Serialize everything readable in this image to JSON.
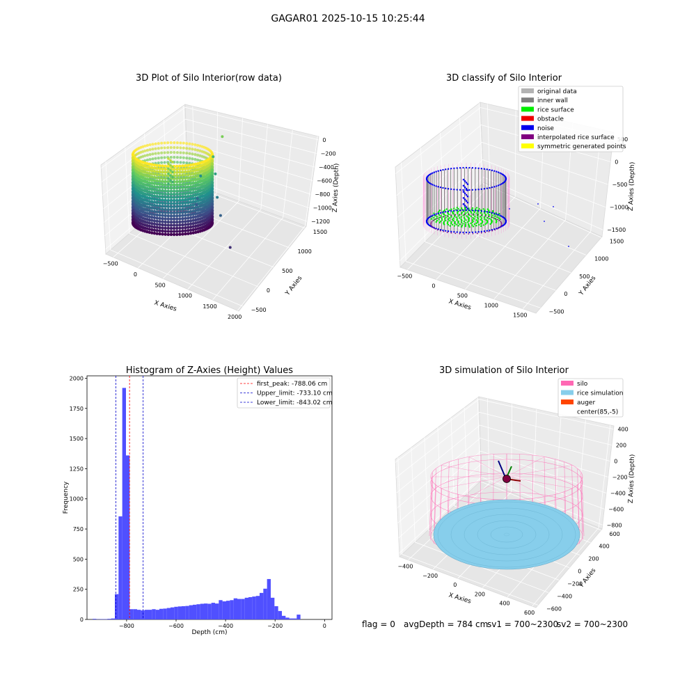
{
  "figure": {
    "suptitle": "GAGAR01 2025-10-15 10:25:44",
    "status": {
      "flag": "flag = 0",
      "avg_depth": "avgDepth = 784 cm",
      "sv1": "sv1 = 700~2300",
      "sv2": "sv2 = 700~2300"
    }
  },
  "chart_data": [
    {
      "type": "scatter",
      "projection": "3d",
      "title": "3D Plot of Silo Interior(row data)",
      "xlabel": "X Axies",
      "ylabel": "Y Axies",
      "zlabel": "Z Axies (Depth)",
      "x_ticks": [
        "−500",
        "0",
        "500",
        "1000",
        "1500",
        "2000"
      ],
      "y_ticks": [
        "−500",
        "0",
        "500",
        "1000",
        "1500"
      ],
      "z_ticks": [
        "0",
        "−200",
        "−400",
        "−600",
        "−800",
        "−1000",
        "−1200"
      ],
      "xlim": [
        -700,
        2000
      ],
      "ylim": [
        -700,
        1500
      ],
      "zlim": [
        -1350,
        100
      ],
      "colormap": "viridis",
      "cylinder": {
        "center": [
          85,
          -5
        ],
        "radius": 420,
        "z_bottom": -1300,
        "z_top": -20
      },
      "outliers": [
        {
          "x": 1120,
          "y": 20,
          "z": -200
        },
        {
          "x": 950,
          "y": 0,
          "z": -400
        },
        {
          "x": 980,
          "y": 20,
          "z": -550
        },
        {
          "x": 1010,
          "y": 30,
          "z": -750
        },
        {
          "x": 1070,
          "y": 40,
          "z": -900
        },
        {
          "x": 1250,
          "y": 60,
          "z": -1150
        },
        {
          "x": 650,
          "y": 60,
          "z": -640
        },
        {
          "x": 560,
          "y": 90,
          "z": -860
        },
        {
          "x": 520,
          "y": 120,
          "z": -930
        }
      ]
    },
    {
      "type": "scatter",
      "projection": "3d",
      "title": "3D classify of Silo Interior",
      "xlabel": "X Axies",
      "ylabel": "Y Axies",
      "zlabel": "Z Axies (Depth)",
      "x_ticks": [
        "−500",
        "0",
        "500",
        "1000",
        "1500"
      ],
      "y_ticks": [
        "−500",
        "0",
        "500",
        "1000",
        "1500"
      ],
      "z_ticks": [
        "500",
        "0",
        "−500",
        "−1000",
        "−1500"
      ],
      "xlim": [
        -700,
        1800
      ],
      "ylim": [
        -700,
        1700
      ],
      "zlim": [
        -1700,
        700
      ],
      "legend_location": "top-right",
      "legend": [
        {
          "label": "original data",
          "color": "#b3b3b3"
        },
        {
          "label": "inner wall",
          "color": "#808080"
        },
        {
          "label": "rice surface",
          "color": "#00ee00"
        },
        {
          "label": "obstacle",
          "color": "#ee0000"
        },
        {
          "label": "noise",
          "color": "#0000ee"
        },
        {
          "label": "interpolated rice surface",
          "color": "#800080"
        },
        {
          "label": "symmetric generated points",
          "color": "#ffff00"
        }
      ]
    },
    {
      "type": "bar",
      "title": "Histogram of Z-Axies (Height) Values",
      "xlabel": "Depth (cm)",
      "ylabel": "Frequency",
      "xlim": [
        -960,
        30
      ],
      "ylim": [
        0,
        2020
      ],
      "x_ticks": [
        -800,
        -600,
        -400,
        -200,
        0
      ],
      "x_tick_labels": [
        "−800",
        "−600",
        "−400",
        "−200",
        "0"
      ],
      "y_ticks": [
        0,
        250,
        500,
        750,
        1000,
        1250,
        1500,
        1750,
        2000
      ],
      "y_tick_labels": [
        "0",
        "250",
        "500",
        "750",
        "1000",
        "1250",
        "1500",
        "1750",
        "2000"
      ],
      "bar_color": "#5050ff",
      "bin_edges": [
        -937.5,
        -922.5,
        -907.5,
        -892.5,
        -877.5,
        -862.5,
        -847.5,
        -832.5,
        -817.5,
        -802.5,
        -787.5,
        -772.5,
        -757.5,
        -742.5,
        -727.5,
        -712.5,
        -697.5,
        -682.5,
        -667.5,
        -652.5,
        -637.5,
        -622.5,
        -607.5,
        -592.5,
        -577.5,
        -562.5,
        -547.5,
        -532.5,
        -517.5,
        -502.5,
        -487.5,
        -472.5,
        -457.5,
        -442.5,
        -427.5,
        -412.5,
        -397.5,
        -382.5,
        -367.5,
        -352.5,
        -337.5,
        -322.5,
        -307.5,
        -292.5,
        -277.5,
        -262.5,
        -247.5,
        -232.5,
        -217.5,
        -202.5,
        -187.5,
        -172.5,
        -157.5,
        -142.5,
        -127.5,
        -112.5,
        -97.5,
        -82.5,
        -67.5,
        -52.5,
        -37.5,
        -22.5,
        -7.5,
        7.5
      ],
      "values": [
        5,
        2,
        3,
        3,
        5,
        8,
        210,
        855,
        1920,
        1360,
        85,
        85,
        80,
        75,
        80,
        80,
        85,
        80,
        88,
        90,
        95,
        100,
        105,
        108,
        110,
        112,
        118,
        122,
        126,
        130,
        132,
        130,
        138,
        132,
        160,
        150,
        155,
        160,
        175,
        170,
        170,
        180,
        185,
        190,
        195,
        220,
        255,
        335,
        180,
        110,
        70,
        30,
        15,
        8,
        8,
        40,
        0,
        0,
        0,
        0,
        0,
        0,
        0
      ],
      "legend_location": "top-right",
      "reference_lines": [
        {
          "label": "first_peak: -788.06 cm",
          "x": -788.06,
          "color": "#ff0000"
        },
        {
          "label": "Upper_limit: -733.10 cm",
          "x": -733.1,
          "color": "#0000cc"
        },
        {
          "label": "Lower_limit: -843.02 cm",
          "x": -843.02,
          "color": "#0000cc"
        }
      ]
    },
    {
      "type": "scatter",
      "projection": "3d",
      "title": "3D simulation of Silo Interior",
      "xlabel": "X Axies",
      "ylabel": "Y Axies",
      "zlabel": "Z Axies (Depth)",
      "x_ticks": [
        "−400",
        "−200",
        "0",
        "200",
        "400",
        "600"
      ],
      "y_ticks": [
        "−600",
        "−400",
        "−200",
        "0",
        "200",
        "400",
        "600"
      ],
      "z_ticks": [
        "400",
        "200",
        "0",
        "−200",
        "−400",
        "−600",
        "−800"
      ],
      "xlim": [
        -550,
        750
      ],
      "ylim": [
        -700,
        700
      ],
      "zlim": [
        -950,
        450
      ],
      "legend_location": "top-right",
      "legend": [
        {
          "label": "silo",
          "color": "#ff69b4"
        },
        {
          "label": "rice simulation",
          "color": "#87ceeb"
        },
        {
          "label": "auger",
          "color": "#ff4500"
        },
        {
          "label": "center(85,-5)",
          "color": "#ffffff"
        }
      ]
    }
  ]
}
